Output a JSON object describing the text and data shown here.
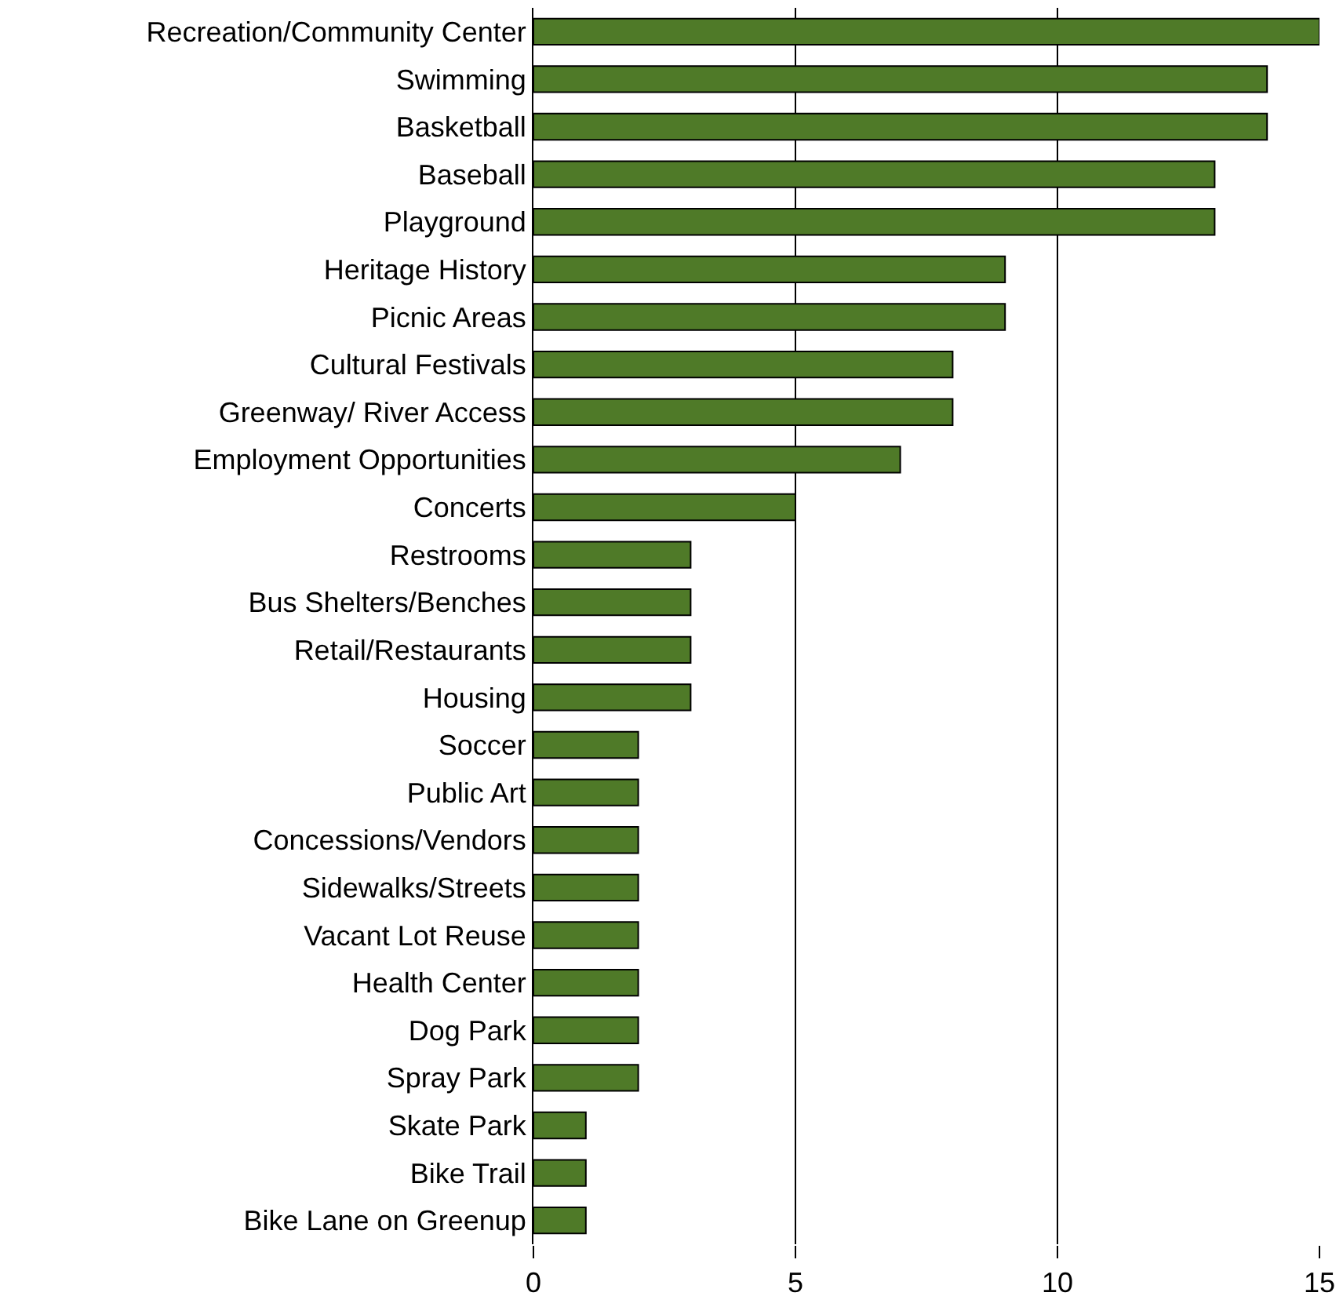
{
  "chart_data": {
    "type": "bar",
    "orientation": "horizontal",
    "categories": [
      "Recreation/Community Center",
      "Swimming",
      "Basketball",
      "Baseball",
      "Playground",
      "Heritage History",
      "Picnic Areas",
      "Cultural Festivals",
      "Greenway/ River Access",
      "Employment Opportunities",
      "Concerts",
      "Restrooms",
      "Bus Shelters/Benches",
      "Retail/Restaurants",
      "Housing",
      "Soccer",
      "Public Art",
      "Concessions/Vendors",
      "Sidewalks/Streets",
      "Vacant Lot Reuse",
      "Health Center",
      "Dog Park",
      "Spray Park",
      "Skate Park",
      "Bike Trail",
      "Bike Lane on Greenup"
    ],
    "values": [
      15,
      14,
      14,
      13,
      13,
      9,
      9,
      8,
      8,
      7,
      5,
      3,
      3,
      3,
      3,
      2,
      2,
      2,
      2,
      2,
      2,
      2,
      2,
      1,
      1,
      1
    ],
    "color": "#4f7a28",
    "xlim": [
      0,
      15
    ],
    "xticks": [
      0,
      5,
      10,
      15
    ],
    "grid": "x",
    "legend": false
  }
}
